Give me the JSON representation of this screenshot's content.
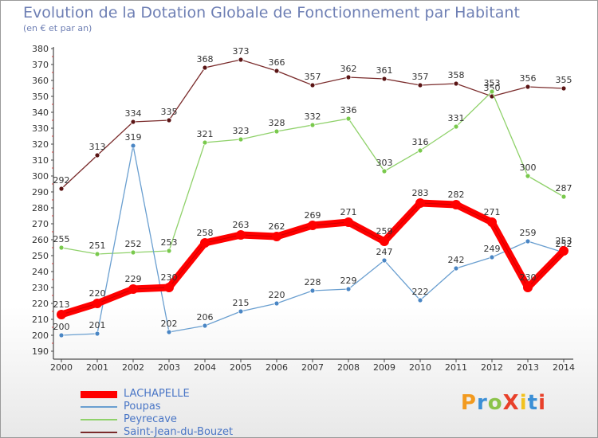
{
  "title": "Evolution de la Dotation Globale de Fonctionnement par Habitant",
  "subtitle": "(en € et par an)",
  "logo": "ProXiti",
  "chart_data": {
    "type": "line",
    "x": [
      "2000",
      "2001",
      "2002",
      "2003",
      "2004",
      "2005",
      "2006",
      "2007",
      "2008",
      "2009",
      "2010",
      "2011",
      "2012",
      "2013",
      "2014"
    ],
    "ylim": [
      190,
      380
    ],
    "yticks": [
      190,
      200,
      210,
      220,
      230,
      240,
      250,
      260,
      270,
      280,
      290,
      300,
      310,
      320,
      330,
      340,
      350,
      360,
      370,
      380
    ],
    "grid": false,
    "legend_position": "bottom-left",
    "series": [
      {
        "name": "Saint-Jean-du-Bouzet",
        "color": "#7a2b2b",
        "marker": "#5a1414",
        "values": [
          292,
          313,
          334,
          335,
          368,
          373,
          366,
          357,
          362,
          361,
          357,
          358,
          350,
          356,
          355
        ]
      },
      {
        "name": "Peyrecave",
        "color": "#8fd16a",
        "marker": "#79c94c",
        "values": [
          255,
          251,
          252,
          253,
          321,
          323,
          328,
          332,
          336,
          303,
          316,
          331,
          353,
          300,
          287
        ]
      },
      {
        "name": "Poupas",
        "color": "#6a9fd0",
        "marker": "#4a86c4",
        "values": [
          200,
          201,
          319,
          202,
          206,
          215,
          220,
          228,
          229,
          247,
          222,
          242,
          249,
          259,
          252
        ]
      },
      {
        "name": "LACHAPELLE",
        "color": "#ff0000",
        "marker": "#ff0000",
        "thick": true,
        "values": [
          213,
          220,
          229,
          230,
          258,
          263,
          262,
          269,
          271,
          259,
          283,
          282,
          271,
          230,
          253
        ]
      }
    ],
    "legend": [
      {
        "name": "LACHAPELLE",
        "color": "#ff0000",
        "text_color": "#4a76c6"
      },
      {
        "name": "Poupas",
        "color": "#6a9fd0",
        "text_color": "#4a76c6"
      },
      {
        "name": "Peyrecave",
        "color": "#8fd16a",
        "text_color": "#4a76c6"
      },
      {
        "name": "Saint-Jean-du-Bouzet",
        "color": "#7a2b2b",
        "text_color": "#4a76c6"
      }
    ]
  }
}
